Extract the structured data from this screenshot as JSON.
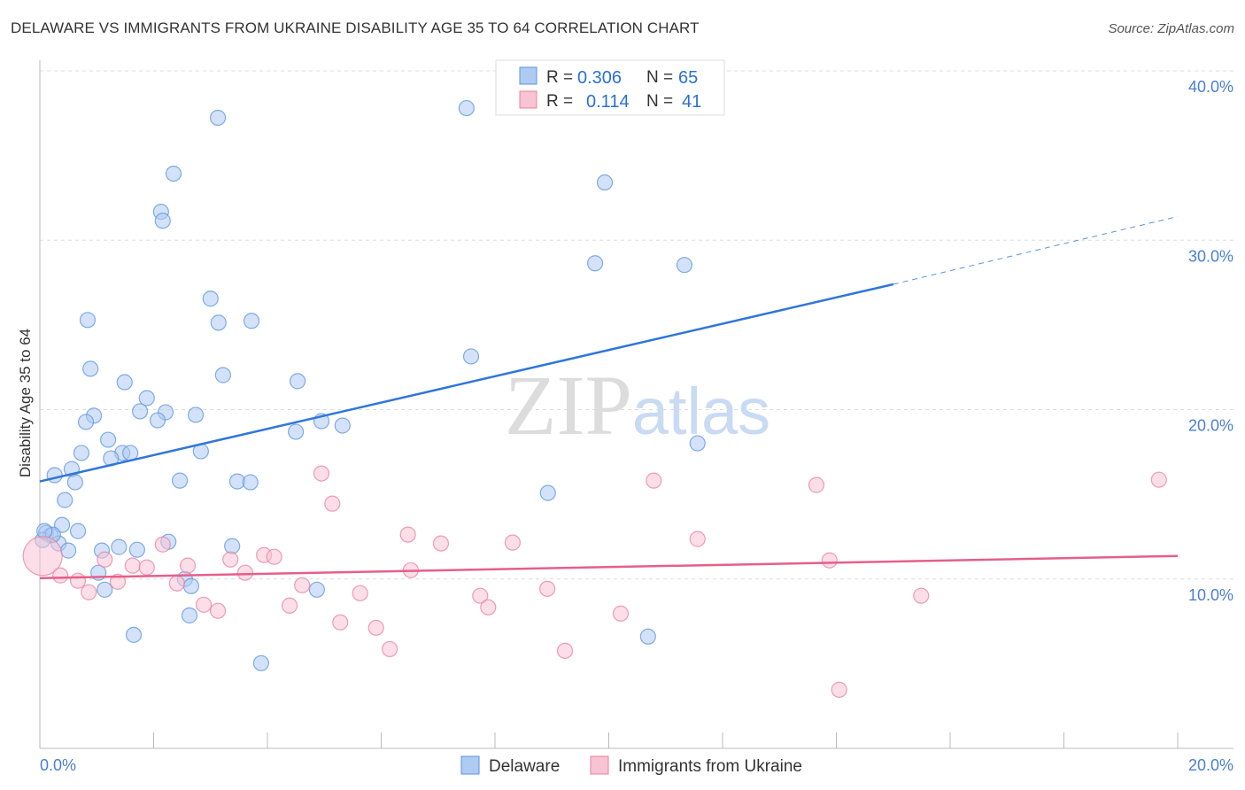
{
  "chart_data": {
    "type": "scatter",
    "title": "DELAWARE VS IMMIGRANTS FROM UKRAINE DISABILITY AGE 35 TO 64 CORRELATION CHART",
    "source": "Source: ZipAtlas.com",
    "xlabel": "",
    "ylabel": "Disability Age 35 to 64",
    "xlim": [
      0,
      20
    ],
    "ylim": [
      0,
      40
    ],
    "x_tick_labels": [
      "0.0%",
      "20.0%"
    ],
    "y_ticks": [
      10,
      20,
      30,
      40
    ],
    "y_tick_labels": [
      "10.0%",
      "20.0%",
      "30.0%",
      "40.0%"
    ],
    "grid": true,
    "watermark": "ZIPatlas",
    "legend_stats": [
      {
        "r_label": "R =",
        "r": "0.306",
        "n_label": "N =",
        "n": "65"
      },
      {
        "r_label": "R =",
        "r": "0.114",
        "n_label": "N =",
        "n": "41"
      }
    ],
    "series": [
      {
        "name": "Delaware",
        "color": "#5b93dd",
        "fill": "#aecbf2",
        "trend": {
          "x": [
            0,
            15,
            20
          ],
          "y": [
            15.76,
            27.4,
            31.4
          ],
          "solid_until": 15
        },
        "points": [
          [
            3.13,
            37.23
          ],
          [
            7.5,
            37.8
          ],
          [
            2.35,
            33.93
          ],
          [
            9.93,
            33.41
          ],
          [
            2.13,
            31.68
          ],
          [
            2.16,
            31.15
          ],
          [
            9.76,
            28.64
          ],
          [
            11.33,
            28.54
          ],
          [
            3.0,
            26.55
          ],
          [
            0.84,
            25.29
          ],
          [
            3.14,
            25.13
          ],
          [
            3.72,
            25.24
          ],
          [
            0.89,
            22.41
          ],
          [
            7.58,
            23.14
          ],
          [
            1.49,
            21.62
          ],
          [
            3.22,
            22.04
          ],
          [
            4.53,
            21.68
          ],
          [
            1.88,
            20.68
          ],
          [
            1.76,
            19.9
          ],
          [
            2.21,
            19.84
          ],
          [
            0.95,
            19.64
          ],
          [
            2.74,
            19.69
          ],
          [
            0.81,
            19.27
          ],
          [
            2.07,
            19.37
          ],
          [
            4.95,
            19.32
          ],
          [
            5.32,
            19.06
          ],
          [
            4.5,
            18.69
          ],
          [
            1.2,
            18.22
          ],
          [
            11.56,
            18.01
          ],
          [
            0.73,
            17.44
          ],
          [
            1.45,
            17.44
          ],
          [
            1.59,
            17.44
          ],
          [
            1.25,
            17.12
          ],
          [
            2.83,
            17.54
          ],
          [
            0.56,
            16.49
          ],
          [
            0.26,
            16.13
          ],
          [
            0.62,
            15.71
          ],
          [
            2.46,
            15.81
          ],
          [
            3.47,
            15.76
          ],
          [
            3.7,
            15.71
          ],
          [
            8.93,
            15.08
          ],
          [
            0.44,
            14.66
          ],
          [
            0.39,
            13.19
          ],
          [
            0.11,
            12.72
          ],
          [
            0.19,
            12.57
          ],
          [
            0.67,
            12.83
          ],
          [
            0.33,
            12.1
          ],
          [
            2.26,
            12.2
          ],
          [
            0.5,
            11.68
          ],
          [
            1.09,
            11.68
          ],
          [
            1.39,
            11.89
          ],
          [
            1.71,
            11.73
          ],
          [
            3.38,
            11.94
          ],
          [
            1.03,
            10.37
          ],
          [
            2.55,
            10.0
          ],
          [
            2.66,
            9.58
          ],
          [
            1.14,
            9.37
          ],
          [
            4.87,
            9.37
          ],
          [
            1.65,
            6.7
          ],
          [
            2.63,
            7.85
          ],
          [
            10.69,
            6.6
          ],
          [
            3.89,
            5.03
          ],
          [
            0.05,
            12.3
          ],
          [
            0.23,
            12.62
          ],
          [
            0.08,
            12.83
          ]
        ]
      },
      {
        "name": "Immigrants from Ukraine",
        "color": "#e87fa0",
        "fill": "#f8c3d3",
        "trend": {
          "x": [
            0,
            20
          ],
          "y": [
            10.05,
            11.36
          ]
        },
        "points": [
          [
            0.05,
            11.36
          ],
          [
            0.36,
            10.21
          ],
          [
            0.67,
            9.9
          ],
          [
            0.86,
            9.22
          ],
          [
            1.14,
            11.15
          ],
          [
            1.37,
            9.84
          ],
          [
            1.63,
            10.79
          ],
          [
            1.88,
            10.68
          ],
          [
            2.16,
            12.04
          ],
          [
            2.41,
            9.74
          ],
          [
            2.6,
            10.79
          ],
          [
            2.88,
            8.48
          ],
          [
            3.13,
            8.12
          ],
          [
            3.35,
            11.15
          ],
          [
            3.61,
            10.37
          ],
          [
            3.94,
            11.41
          ],
          [
            4.12,
            11.31
          ],
          [
            4.39,
            8.43
          ],
          [
            4.61,
            9.63
          ],
          [
            4.95,
            16.23
          ],
          [
            5.14,
            14.45
          ],
          [
            5.28,
            7.44
          ],
          [
            5.63,
            9.16
          ],
          [
            5.91,
            7.12
          ],
          [
            6.15,
            5.86
          ],
          [
            6.47,
            12.62
          ],
          [
            6.52,
            10.52
          ],
          [
            7.05,
            12.1
          ],
          [
            7.74,
            9.01
          ],
          [
            7.88,
            8.33
          ],
          [
            8.31,
            12.15
          ],
          [
            8.92,
            9.42
          ],
          [
            9.23,
            5.76
          ],
          [
            10.21,
            7.96
          ],
          [
            10.79,
            15.81
          ],
          [
            11.56,
            12.36
          ],
          [
            13.65,
            15.55
          ],
          [
            13.88,
            11.1
          ],
          [
            14.05,
            3.46
          ],
          [
            15.49,
            9.01
          ],
          [
            19.67,
            15.86
          ]
        ]
      }
    ]
  }
}
